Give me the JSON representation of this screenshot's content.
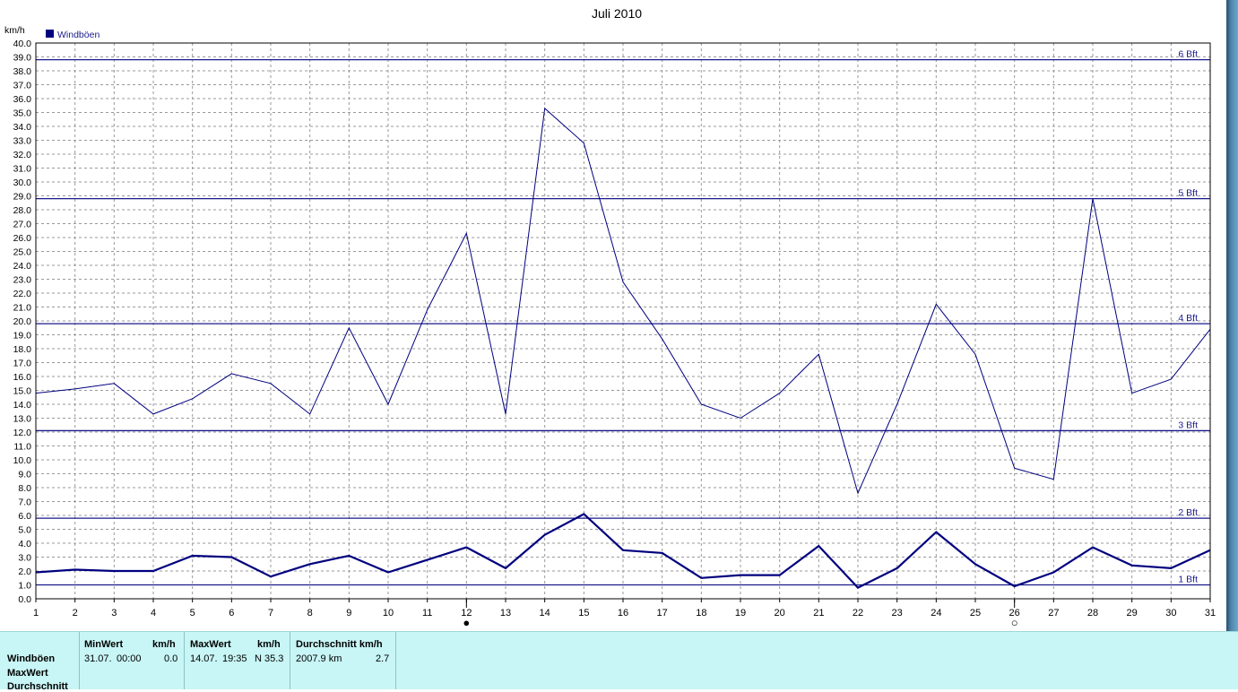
{
  "chart_data": {
    "type": "line",
    "title": "Juli 2010",
    "ylabel": "km/h",
    "xlabel": "",
    "ylim": [
      0,
      40
    ],
    "xlim": [
      1,
      31
    ],
    "grid": true,
    "legend_position": "top-left",
    "y_ticks": [
      "0.0",
      "1.0",
      "2.0",
      "3.0",
      "4.0",
      "5.0",
      "6.0",
      "7.0",
      "8.0",
      "9.0",
      "10.0",
      "11.0",
      "12.0",
      "13.0",
      "14.0",
      "15.0",
      "16.0",
      "17.0",
      "18.0",
      "19.0",
      "20.0",
      "21.0",
      "22.0",
      "23.0",
      "24.0",
      "25.0",
      "26.0",
      "27.0",
      "28.0",
      "29.0",
      "30.0",
      "31.0",
      "32.0",
      "33.0",
      "34.0",
      "35.0",
      "36.0",
      "37.0",
      "38.0",
      "39.0",
      "40.0"
    ],
    "x": [
      1,
      2,
      3,
      4,
      5,
      6,
      7,
      8,
      9,
      10,
      11,
      12,
      13,
      14,
      15,
      16,
      17,
      18,
      19,
      20,
      21,
      22,
      23,
      24,
      25,
      26,
      27,
      28,
      29,
      30,
      31
    ],
    "series": [
      {
        "name": "Windböen",
        "color": "#00007f",
        "values": [
          14.8,
          15.1,
          15.5,
          13.3,
          14.4,
          16.2,
          15.5,
          13.3,
          19.5,
          14.0,
          20.8,
          26.3,
          13.3,
          35.3,
          32.8,
          22.8,
          18.7,
          14.0,
          13.0,
          14.8,
          17.6,
          7.6,
          14.0,
          21.2,
          17.6,
          9.4,
          8.6,
          28.8,
          14.8,
          15.8,
          19.4
        ]
      },
      {
        "color": "#00007f",
        "values": [
          1.9,
          2.1,
          2.0,
          2.0,
          3.1,
          3.0,
          1.6,
          2.5,
          3.1,
          1.9,
          2.8,
          3.7,
          2.2,
          4.6,
          6.1,
          3.5,
          3.3,
          1.5,
          1.7,
          1.7,
          3.8,
          0.8,
          2.2,
          4.8,
          2.5,
          0.9,
          1.9,
          3.7,
          2.4,
          2.2,
          3.5
        ]
      }
    ],
    "reference_lines": [
      {
        "label": "1 Bft",
        "value": 1.0
      },
      {
        "label": "2 Bft",
        "value": 5.8
      },
      {
        "label": "3 Bft",
        "value": 12.1
      },
      {
        "label": "4 Bft",
        "value": 19.8
      },
      {
        "label": "5 Bft",
        "value": 28.8
      },
      {
        "label": "6 Bft",
        "value": 38.8
      }
    ],
    "moon_markers": [
      {
        "day": 12,
        "symbol": "●"
      },
      {
        "day": 26,
        "symbol": "○"
      }
    ],
    "colors": {
      "line": "#00007f",
      "grid": "#999999",
      "panel": "#c8f5f5"
    }
  },
  "stats": {
    "row_labels": [
      "Windböen",
      "MaxWert",
      "Durchschnitt"
    ],
    "min": {
      "header": "MinWert",
      "unit": "km/h",
      "date": "31.07.",
      "time": "00:00",
      "value": "0.0"
    },
    "max": {
      "header": "MaxWert",
      "unit": "km/h",
      "date": "14.07.",
      "time": "19:35",
      "value": "N 35.3"
    },
    "avg": {
      "header": "Durchschnitt km/h",
      "distance": "2007.9 km",
      "value": "2.7"
    }
  }
}
